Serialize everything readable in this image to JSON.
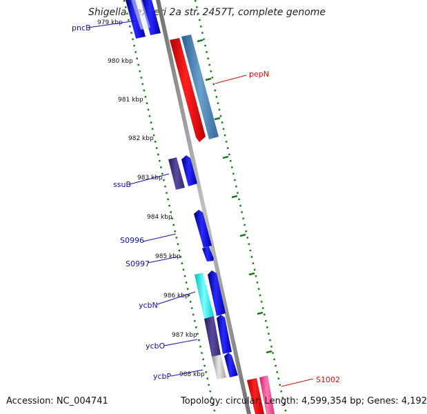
{
  "title": "Shigella flexneri 2a str. 2457T, complete genome",
  "accession": "Accession: NC_004741",
  "topology": "Topology: circular; Length: 4,599,354 bp; Genes: 4,192",
  "colors": {
    "backbone": "#808080",
    "tick": "#1a7a1a",
    "forward_label": "#1010b0",
    "reverse_label": "#cc1010"
  },
  "ticks": [
    "979 kbp",
    "980 kbp",
    "981 kbp",
    "982 kbp",
    "983 kbp",
    "984 kbp",
    "985 kbp",
    "986 kbp",
    "987 kbp",
    "988 kbp"
  ],
  "labels": {
    "pncB": "pncB",
    "pepN": "pepN",
    "ssuB": "ssuB",
    "S0996": "S0996",
    "S0997": "S0997",
    "ycbN": "ycbN",
    "ycbO": "ycbO",
    "ycbP": "ycbP",
    "S1002": "S1002"
  }
}
